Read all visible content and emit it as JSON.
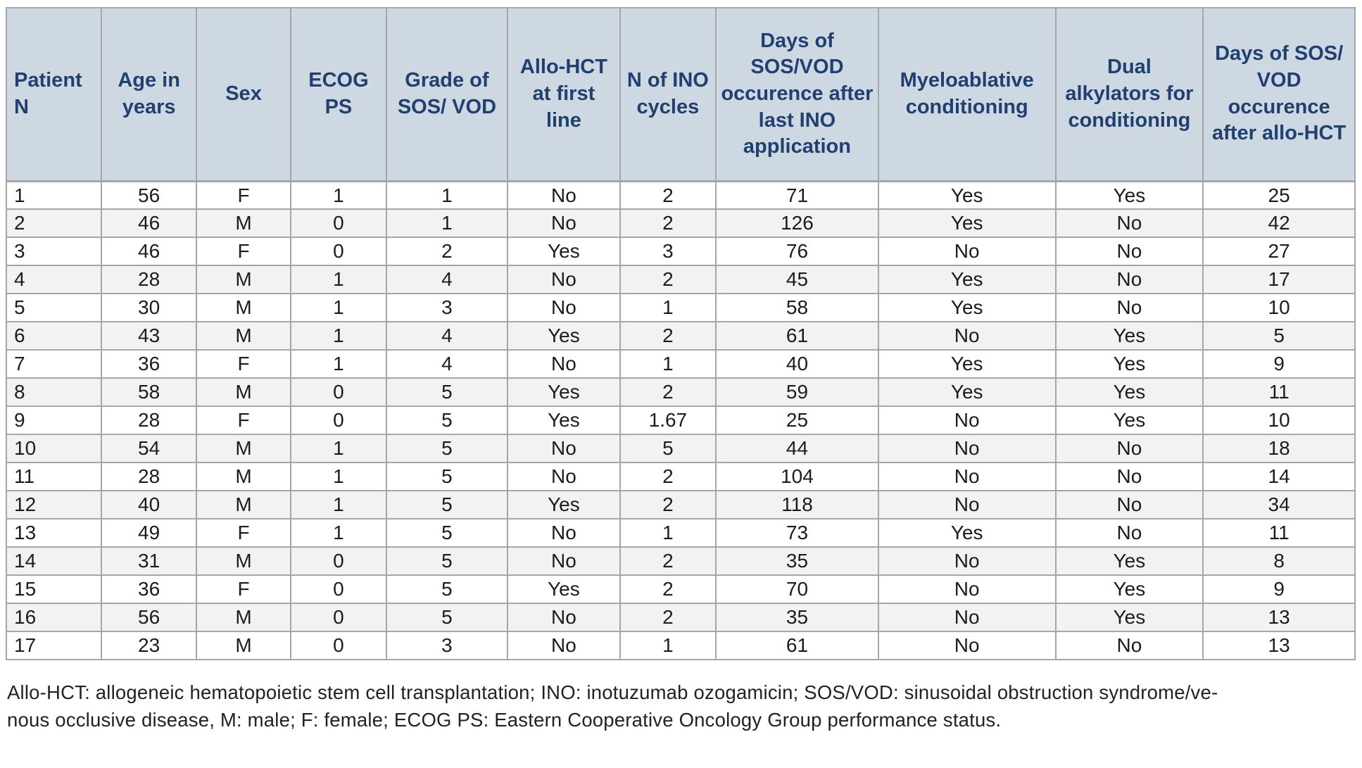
{
  "colors": {
    "header_bg": "#cdd8e2",
    "header_text": "#21406f",
    "row_stripe": "#f2f2f2",
    "border": "#a6a6a6",
    "body_text": "#1c1c1c",
    "footnote_text": "#222222"
  },
  "table": {
    "columns": [
      {
        "key": "patient-n",
        "label": "Patient N"
      },
      {
        "key": "age-in-years",
        "label": "Age in years"
      },
      {
        "key": "sex",
        "label": "Sex"
      },
      {
        "key": "ecog-ps",
        "label": "ECOG PS"
      },
      {
        "key": "grade-of-sos-vod",
        "label": "Grade of SOS/ VOD"
      },
      {
        "key": "allo-hct-at-first-line",
        "label": "Allo-HCT at first line"
      },
      {
        "key": "n-of-ino-cycles",
        "label": "N of INO cycles"
      },
      {
        "key": "days-sos-vod-after-last-ino",
        "label": "Days of SOS/VOD occurence after last INO application"
      },
      {
        "key": "myeloablative-conditioning",
        "label": "Myeloablative conditioning"
      },
      {
        "key": "dual-alkylators-for-conditioning",
        "label": "Dual alkylators for conditioning"
      },
      {
        "key": "days-sos-vod-after-allo-hct",
        "label": "Days of SOS/ VOD occurence after allo-HCT"
      }
    ],
    "rows": [
      [
        "1",
        "56",
        "F",
        "1",
        "1",
        "No",
        "2",
        "71",
        "Yes",
        "Yes",
        "25"
      ],
      [
        "2",
        "46",
        "M",
        "0",
        "1",
        "No",
        "2",
        "126",
        "Yes",
        "No",
        "42"
      ],
      [
        "3",
        "46",
        "F",
        "0",
        "2",
        "Yes",
        "3",
        "76",
        "No",
        "No",
        "27"
      ],
      [
        "4",
        "28",
        "M",
        "1",
        "4",
        "No",
        "2",
        "45",
        "Yes",
        "No",
        "17"
      ],
      [
        "5",
        "30",
        "M",
        "1",
        "3",
        "No",
        "1",
        "58",
        "Yes",
        "No",
        "10"
      ],
      [
        "6",
        "43",
        "M",
        "1",
        "4",
        "Yes",
        "2",
        "61",
        "No",
        "Yes",
        "5"
      ],
      [
        "7",
        "36",
        "F",
        "1",
        "4",
        "No",
        "1",
        "40",
        "Yes",
        "Yes",
        "9"
      ],
      [
        "8",
        "58",
        "M",
        "0",
        "5",
        "Yes",
        "2",
        "59",
        "Yes",
        "Yes",
        "11"
      ],
      [
        "9",
        "28",
        "F",
        "0",
        "5",
        "Yes",
        "1.67",
        "25",
        "No",
        "Yes",
        "10"
      ],
      [
        "10",
        "54",
        "M",
        "1",
        "5",
        "No",
        "5",
        "44",
        "No",
        "No",
        "18"
      ],
      [
        "11",
        "28",
        "M",
        "1",
        "5",
        "No",
        "2",
        "104",
        "No",
        "No",
        "14"
      ],
      [
        "12",
        "40",
        "M",
        "1",
        "5",
        "Yes",
        "2",
        "118",
        "No",
        "No",
        "34"
      ],
      [
        "13",
        "49",
        "F",
        "1",
        "5",
        "No",
        "1",
        "73",
        "Yes",
        "No",
        "11"
      ],
      [
        "14",
        "31",
        "M",
        "0",
        "5",
        "No",
        "2",
        "35",
        "No",
        "Yes",
        "8"
      ],
      [
        "15",
        "36",
        "F",
        "0",
        "5",
        "Yes",
        "2",
        "70",
        "No",
        "Yes",
        "9"
      ],
      [
        "16",
        "56",
        "M",
        "0",
        "5",
        "No",
        "2",
        "35",
        "No",
        "Yes",
        "13"
      ],
      [
        "17",
        "23",
        "M",
        "0",
        "3",
        "No",
        "1",
        "61",
        "No",
        "No",
        "13"
      ]
    ]
  },
  "footnote": {
    "line1": "Allo-HCT: allogeneic hematopoietic stem cell transplantation; INO: inotuzumab ozogamicin; SOS/VOD: sinusoidal obstruction syndrome/ve-",
    "line2": "nous occlusive disease, M: male; F: female; ECOG PS: Eastern Cooperative Oncology Group performance status."
  }
}
